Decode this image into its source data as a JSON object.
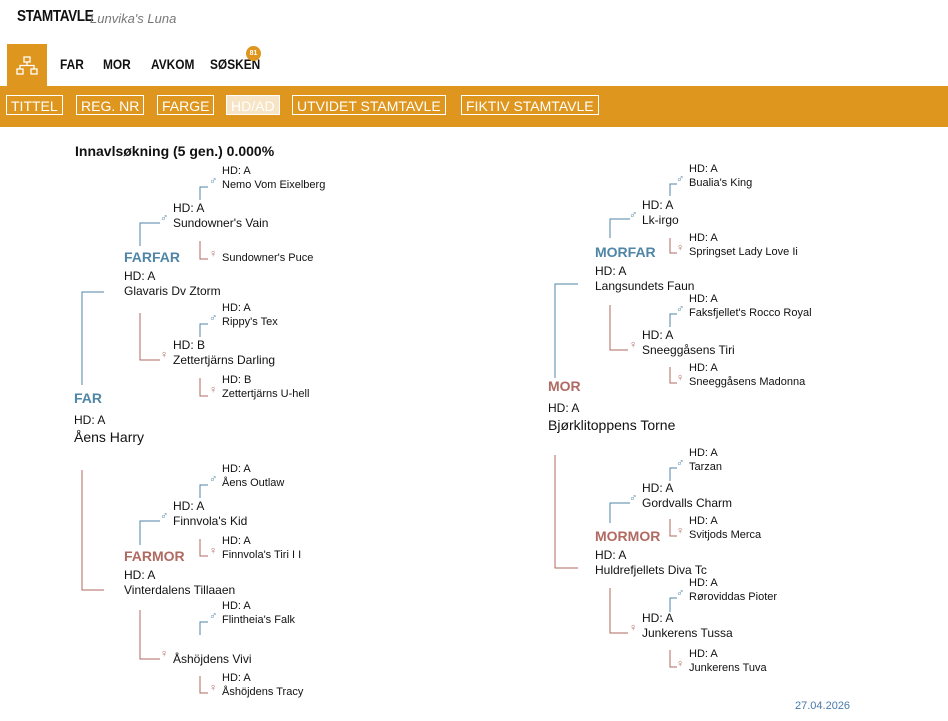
{
  "header": {
    "title": "STAMTAVLE",
    "subtitle": "Lunvika's Luna"
  },
  "tabs": [
    "FAR",
    "MOR",
    "AVKOM",
    "SØSKEN"
  ],
  "badge": "81",
  "subtabs": [
    "TITTEL",
    "REG. NR",
    "FARGE",
    "HD/AD",
    "UTVIDET STAMTAVLE",
    "FIKTIV STAMTAVLE"
  ],
  "inbreeding": "Innavlsøkning (5 gen.) 0.000%",
  "pedigree": [
    {
      "role": "FAR",
      "hd": "HD: A",
      "name": "Åens Harry",
      "color": "#4f86a6"
    },
    {
      "role": "FARFAR",
      "hd": "HD: A",
      "name": "Glavaris Dv Ztorm",
      "color": "#4f86a6"
    },
    {
      "hd": "HD: A",
      "symbol": "♂",
      "name": "Sundowner's Vain",
      "color": "#4f86a6"
    },
    {
      "hd": "HD: A",
      "symbol": "♂",
      "name": "Nemo Vom Eixelberg",
      "color": "#4f86a6"
    },
    {
      "symbol": "♀",
      "name": "Sundowner's Puce",
      "color": "#b06a62"
    },
    {
      "hd": "HD: B",
      "symbol": "♀",
      "name": "Zettertjärns Darling",
      "color": "#b06a62"
    },
    {
      "hd": "HD: A",
      "symbol": "♂",
      "name": "Rippy's Tex",
      "color": "#4f86a6"
    },
    {
      "hd": "HD: B",
      "symbol": "♀",
      "name": "Zettertjärns U-hell",
      "color": "#b06a62"
    },
    {
      "role": "FARMOR",
      "hd": "HD: A",
      "name": "Vinterdalens Tillaaen",
      "color": "#b06a62"
    },
    {
      "hd": "HD: A",
      "symbol": "♂",
      "name": "Finnvola's Kid",
      "color": "#4f86a6"
    },
    {
      "hd": "HD: A",
      "symbol": "♂",
      "name": "Åens Outlaw",
      "color": "#4f86a6"
    },
    {
      "hd": "HD: A",
      "symbol": "♀",
      "name": "Finnvola's Tiri I I",
      "color": "#b06a62"
    },
    {
      "symbol": "♀",
      "name": "Åshöjdens Vivi",
      "color": "#b06a62"
    },
    {
      "hd": "HD: A",
      "symbol": "♂",
      "name": "Flintheia's Falk",
      "color": "#4f86a6"
    },
    {
      "hd": "HD: A",
      "symbol": "♀",
      "name": "Åshöjdens Tracy",
      "color": "#b06a62"
    },
    {
      "role": "MOR",
      "hd": "HD: A",
      "name": "Bjørklitoppens Torne",
      "color": "#b06a62"
    },
    {
      "role": "MORFAR",
      "hd": "HD: A",
      "name": "Langsundets Faun",
      "color": "#4f86a6"
    },
    {
      "hd": "HD: A",
      "symbol": "♂",
      "name": "Lk-irgo",
      "color": "#4f86a6"
    },
    {
      "hd": "HD: A",
      "symbol": "♂",
      "name": "Bualia's King",
      "color": "#4f86a6"
    },
    {
      "hd": "HD: A",
      "symbol": "♀",
      "name": "Springset Lady Love Ii",
      "color": "#b06a62"
    },
    {
      "hd": "HD: A",
      "symbol": "♀",
      "name": "Sneeggåsens Tiri",
      "color": "#b06a62"
    },
    {
      "hd": "HD: A",
      "symbol": "♂",
      "name": "Faksfjellet's Rocco Royal",
      "color": "#4f86a6"
    },
    {
      "hd": "HD: A",
      "symbol": "♀",
      "name": "Sneeggåsens Madonna",
      "color": "#b06a62"
    },
    {
      "role": "MORMOR",
      "hd": "HD: A",
      "name": "Huldrefjellets Diva Tc",
      "color": "#b06a62"
    },
    {
      "hd": "HD: A",
      "symbol": "♂",
      "name": "Gordvalls Charm",
      "color": "#4f86a6"
    },
    {
      "hd": "HD: A",
      "symbol": "♂",
      "name": "Tarzan",
      "color": "#4f86a6"
    },
    {
      "hd": "HD: A",
      "symbol": "♀",
      "name": "Svitjods Merca",
      "color": "#b06a62"
    },
    {
      "hd": "HD: A",
      "symbol": "♀",
      "name": "Junkerens Tussa",
      "color": "#b06a62"
    },
    {
      "hd": "HD: A",
      "symbol": "♂",
      "name": "Røroviddas Pioter",
      "color": "#4f86a6"
    },
    {
      "hd": "HD: A",
      "symbol": "♀",
      "name": "Junkerens Tuva",
      "color": "#b06a62"
    }
  ],
  "date": "27.04.2026"
}
